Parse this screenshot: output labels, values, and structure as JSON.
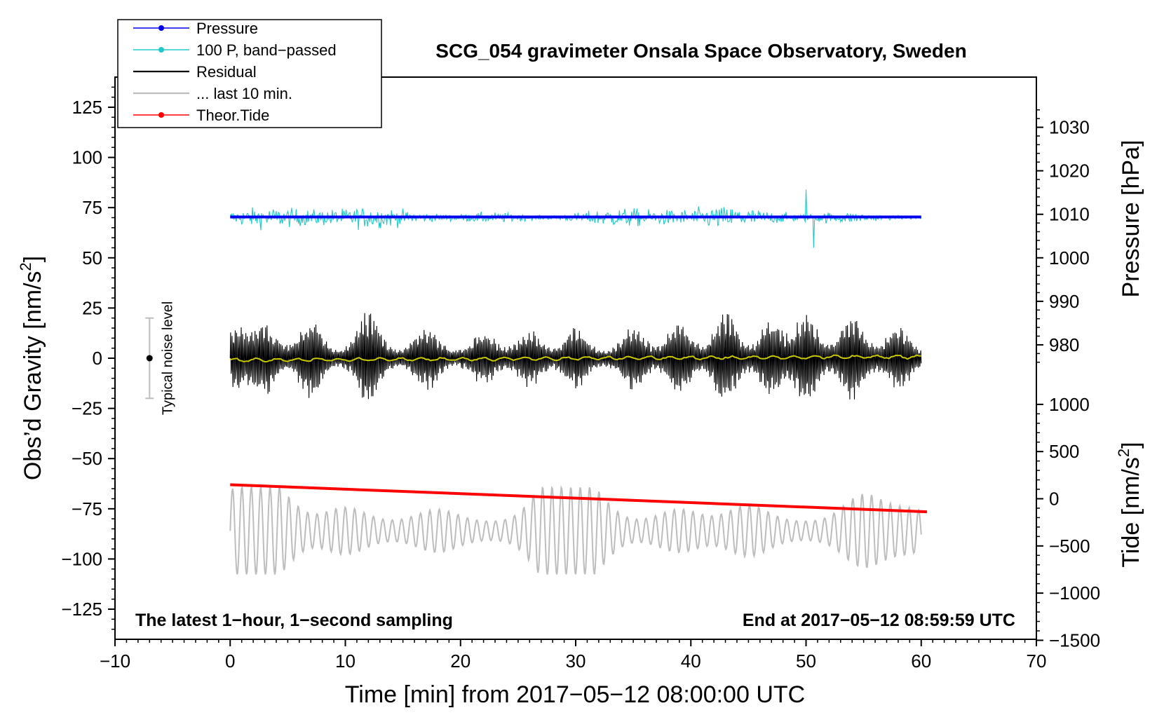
{
  "chart_data": {
    "type": "line",
    "title": "SCG_054 gravimeter Onsala Space Observatory, Sweden",
    "xlabel": "Time [min] from 2017−05−12 08:00:00 UTC",
    "ylabel_left": "Obs’d Gravity [nm/s",
    "ylabel_left_sup": "2",
    "ylabel_left_end": "]",
    "ylabel_right_pressure": "Pressure [hPa]",
    "ylabel_right_tide": "Tide [nm/s",
    "ylabel_right_tide_sup": "2",
    "ylabel_right_tide_end": "]",
    "xlim": [
      -10,
      70
    ],
    "ylim_left": [
      -140,
      140
    ],
    "x_ticks": [
      -10,
      0,
      10,
      20,
      30,
      40,
      50,
      60,
      70
    ],
    "x_tick_labels": [
      "−10",
      "0",
      "10",
      "20",
      "30",
      "40",
      "50",
      "60",
      "70"
    ],
    "y_left_ticks": [
      125,
      100,
      75,
      50,
      25,
      0,
      -25,
      -50,
      -75,
      -100,
      -125
    ],
    "y_left_tick_labels": [
      "125",
      "100",
      "75",
      "50",
      "25",
      "0",
      "−25",
      "−50",
      "−75",
      "−100",
      "−125"
    ],
    "pressure_axis": {
      "ticks": [
        1030,
        1020,
        1010,
        1000,
        990,
        980
      ],
      "tick_labels": [
        "1030",
        "1020",
        "1010",
        "1000",
        "990",
        "980"
      ],
      "gravity_at_1000": 50,
      "gravity_per_hpa": 2.167
    },
    "tide_axis": {
      "ticks": [
        1000,
        500,
        0,
        -500,
        -1000,
        -1500
      ],
      "tick_labels": [
        "1000",
        "500",
        "0",
        "−500",
        "−1000",
        "−1500"
      ],
      "gravity_at_0": -70,
      "gravity_per_nms2": 0.047
    },
    "legend_items": [
      {
        "label": "Pressure",
        "color": "#0000ee",
        "marker": true
      },
      {
        "label": "100 P, band−passed",
        "color": "#22c8c8",
        "marker": true
      },
      {
        "label": "Residual",
        "color": "#000000",
        "marker": false
      },
      {
        "label": "... last 10 min.",
        "color": "#bdbdbd",
        "marker": false
      },
      {
        "label": "Theor.Tide",
        "color": "#ff0000",
        "marker": true
      }
    ],
    "legend_position": "top-left",
    "series": [
      {
        "name": "Pressure",
        "color": "#0000ee",
        "x": [
          0,
          60
        ],
        "pressure_hpa": [
          1009.4,
          1009.4
        ]
      },
      {
        "name": "100 P, band-passed",
        "color": "#22c8c8",
        "x_range": [
          0,
          60
        ],
        "center": 70,
        "amplitude": 8
      },
      {
        "name": "Residual",
        "color": "#000000",
        "x_range": [
          0,
          60
        ],
        "center": 0,
        "amplitude": 20
      },
      {
        "name": "Residual smoothed",
        "color": "#c8c800",
        "x_range": [
          0,
          60
        ],
        "center": 0
      },
      {
        "name": "... last 10 min.",
        "color": "#bdbdbd",
        "x_range": [
          0,
          60
        ],
        "center": -86,
        "amplitude": 18
      },
      {
        "name": "Theor.Tide",
        "color": "#ff0000",
        "x": [
          0,
          60.5
        ],
        "gravity_scale": [
          -63,
          -76.5
        ],
        "tide_nms2": [
          145,
          -140
        ]
      }
    ],
    "noise_bar": {
      "x": -7,
      "y": 0,
      "range": [
        -20,
        20
      ],
      "label": "Typical noise level"
    },
    "annotation_left": "The latest 1−hour, 1−second sampling",
    "annotation_right": "End at 2017−05−12 08:59:59 UTC",
    "colors": {
      "pressure": "#0000ee",
      "bandpassed": "#22c8c8",
      "residual": "#000000",
      "smooth": "#c8c800",
      "last10": "#bdbdbd",
      "tide": "#ff0000"
    }
  }
}
